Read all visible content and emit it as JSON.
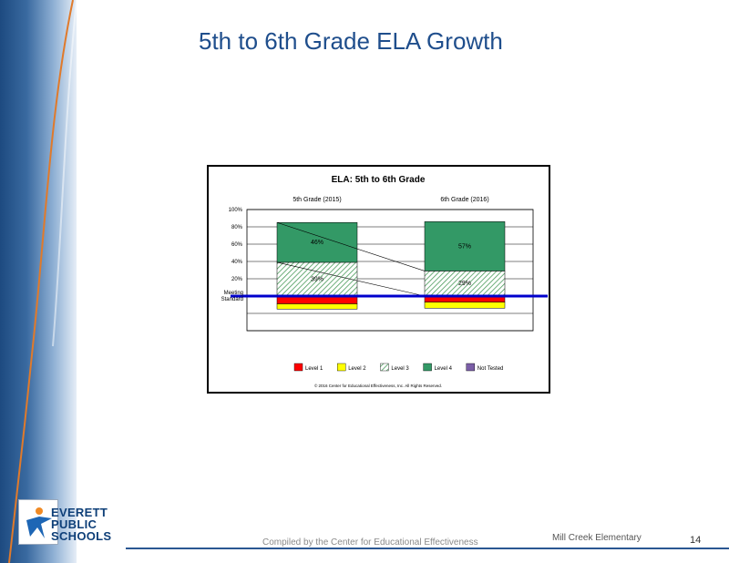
{
  "slide": {
    "title": "5th to 6th Grade ELA Growth"
  },
  "footer": {
    "credit": "Compiled by the Center for Educational Effectiveness",
    "school": "Mill Creek Elementary",
    "page_number": "14"
  },
  "logo": {
    "line1": "EVERETT",
    "line2": "PUBLIC",
    "line3": "SCHOOLS"
  },
  "colors": {
    "level1": "#ff0000",
    "level2": "#ffff00",
    "level3": "#c8e3c8",
    "level4": "#339966",
    "not_tested": "#7b5ea7",
    "meeting_standard": "#0000cc"
  },
  "chart_data": {
    "type": "bar",
    "title": "ELA: 5th to 6th Grade",
    "categories": [
      "5th Grade (2015)",
      "6th Grade (2016)"
    ],
    "y_tick_labels": [
      "100%",
      "80%",
      "60%",
      "40%",
      "20%"
    ],
    "meeting_label": [
      "Meeting",
      "Standard"
    ],
    "series": [
      {
        "name": "Level 1",
        "values": [
          -9,
          -7
        ],
        "labels": [
          "",
          ""
        ]
      },
      {
        "name": "Level 2",
        "values": [
          -6,
          -7
        ],
        "labels": [
          "",
          ""
        ]
      },
      {
        "name": "Level 3",
        "values": [
          39,
          29
        ],
        "labels": [
          "39%",
          "29%"
        ]
      },
      {
        "name": "Level 4",
        "values": [
          46,
          57
        ],
        "labels": [
          "46%",
          "57%"
        ]
      },
      {
        "name": "Not Tested",
        "values": [
          0,
          0
        ],
        "labels": [
          "",
          ""
        ]
      }
    ],
    "ylim": [
      -40,
      100
    ],
    "legend_position": "bottom",
    "grid": true,
    "copyright": "© 2016 Center for Educational Effectiveness, Inc.  All Rights Reserved."
  }
}
